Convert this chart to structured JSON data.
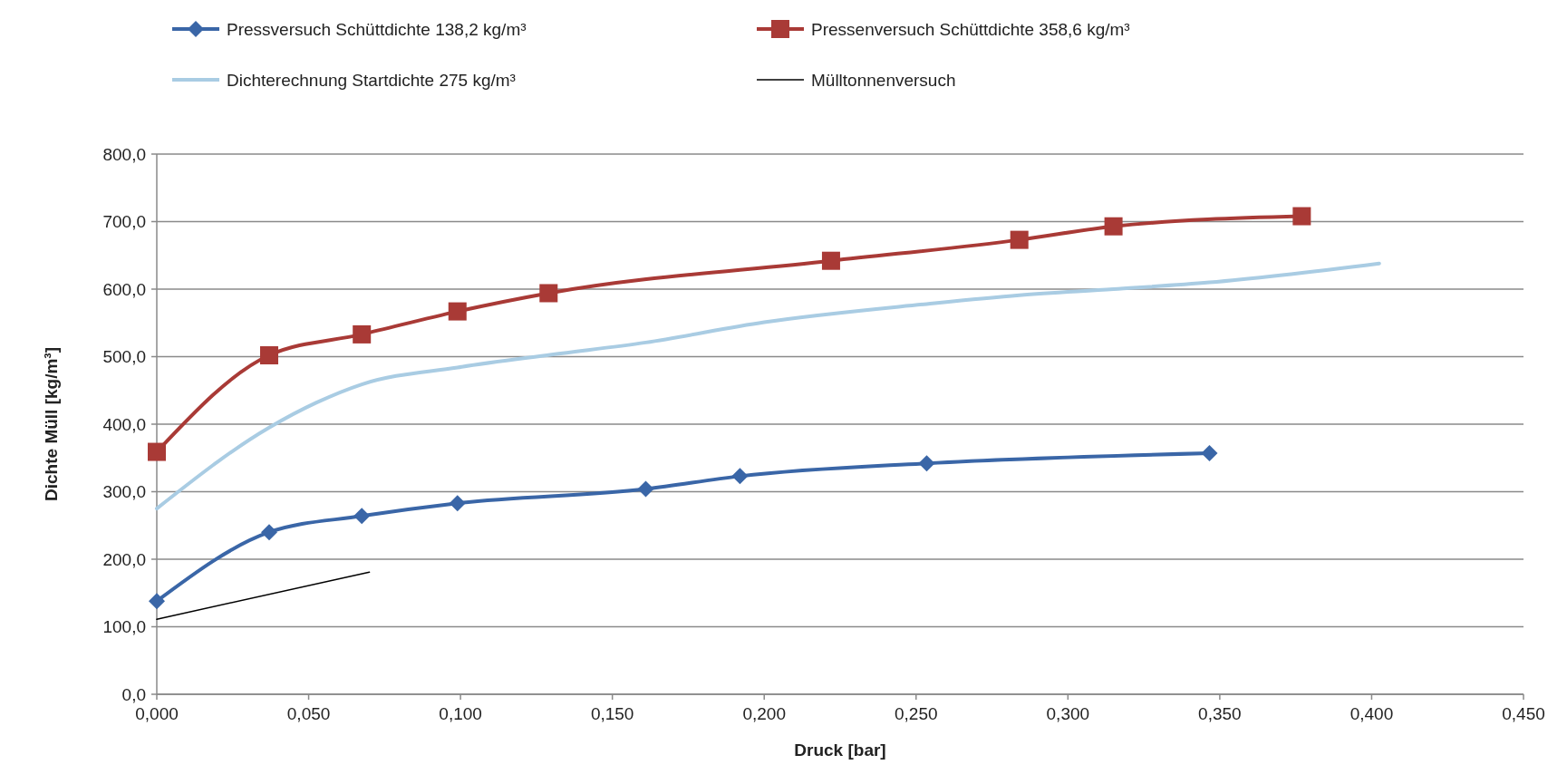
{
  "chart_data": {
    "type": "line",
    "xlabel": "Druck [bar]",
    "ylabel": "Dichte Müll [kg/m³]",
    "xlim": [
      0,
      0.45
    ],
    "ylim": [
      0,
      800
    ],
    "xticks": [
      {
        "value": 0,
        "label": "0,000"
      },
      {
        "value": 0.05,
        "label": "0,050"
      },
      {
        "value": 0.1,
        "label": "0,100"
      },
      {
        "value": 0.15,
        "label": "0,150"
      },
      {
        "value": 0.2,
        "label": "0,200"
      },
      {
        "value": 0.25,
        "label": "0,250"
      },
      {
        "value": 0.3,
        "label": "0,300"
      },
      {
        "value": 0.35,
        "label": "0,350"
      },
      {
        "value": 0.4,
        "label": "0,400"
      },
      {
        "value": 0.45,
        "label": "0,450"
      }
    ],
    "yticks": [
      {
        "value": 0,
        "label": "0,0"
      },
      {
        "value": 100,
        "label": "100,0"
      },
      {
        "value": 200,
        "label": "200,0"
      },
      {
        "value": 300,
        "label": "300,0"
      },
      {
        "value": 400,
        "label": "400,0"
      },
      {
        "value": 500,
        "label": "500,0"
      },
      {
        "value": 600,
        "label": "600,0"
      },
      {
        "value": 700,
        "label": "700,0"
      },
      {
        "value": 800,
        "label": "800,0"
      }
    ],
    "grid": "y",
    "legend": "top",
    "series": [
      {
        "name": "Pressversuch Schüttdichte 138,2 kg/m³",
        "color": "#3a66a7",
        "marker": "diamond",
        "x": [
          0,
          0.037,
          0.0675,
          0.099,
          0.161,
          0.192,
          0.2535,
          0.3466
        ],
        "values": [
          138,
          240,
          264,
          283,
          304,
          323,
          342,
          357
        ]
      },
      {
        "name": "Pressenversuch Schüttdichte 358,6 kg/m³",
        "color": "#a93a36",
        "marker": "square",
        "x": [
          0,
          0.037,
          0.0675,
          0.099,
          0.129,
          0.222,
          0.284,
          0.315,
          0.377
        ],
        "values": [
          359,
          502,
          533,
          567,
          594,
          642,
          673,
          693,
          708
        ]
      },
      {
        "name": "Dichterechnung Startdichte 275 kg/m³",
        "color": "#a9cce3",
        "marker": "none",
        "x": [
          0,
          0.037,
          0.0526,
          0.0675,
          0.099,
          0.13,
          0.161,
          0.2,
          0.2535,
          0.284,
          0.315,
          0.3466,
          0.4025
        ],
        "values": [
          275,
          395,
          432,
          459,
          484,
          503,
          521,
          551,
          578,
          591,
          600,
          610,
          638
        ]
      },
      {
        "name": "Mülltonnenversuch",
        "color": "#000000",
        "marker": "none",
        "x": [
          0,
          0.07
        ],
        "values": [
          111,
          181
        ]
      }
    ]
  }
}
